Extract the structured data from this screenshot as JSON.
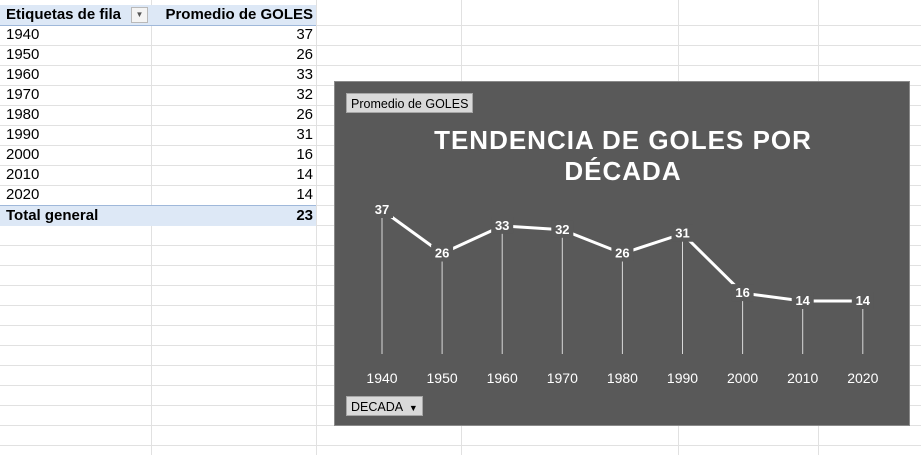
{
  "pivot": {
    "header_row_label": "Etiquetas de fila",
    "header_value": "Promedio de GOLES",
    "filter_icon": "dropdown-arrow-icon",
    "rows": [
      {
        "label": "1940",
        "value": "37"
      },
      {
        "label": "1950",
        "value": "26"
      },
      {
        "label": "1960",
        "value": "33"
      },
      {
        "label": "1970",
        "value": "32"
      },
      {
        "label": "1980",
        "value": "26"
      },
      {
        "label": "1990",
        "value": "31"
      },
      {
        "label": "2000",
        "value": "16"
      },
      {
        "label": "2010",
        "value": "14"
      },
      {
        "label": "2020",
        "value": "14"
      }
    ],
    "total_label": "Total general",
    "total_value": "23"
  },
  "chart": {
    "value_field_button": "Promedio de GOLES",
    "axis_field_button": "DECADA",
    "axis_field_icon": "dropdown-arrow-icon",
    "background": "#595959",
    "line_color": "#ffffff"
  },
  "chart_data": {
    "type": "line",
    "title": "TENDENCIA DE GOLES POR DÉCADA",
    "categories": [
      "1940",
      "1950",
      "1960",
      "1970",
      "1980",
      "1990",
      "2000",
      "2010",
      "2020"
    ],
    "series": [
      {
        "values": [
          37,
          26,
          33,
          32,
          26,
          31,
          16,
          14,
          14
        ]
      }
    ],
    "data_labels": true,
    "drop_lines": true,
    "xlabel": "",
    "ylabel": "",
    "ylim": [
      0,
      40
    ],
    "legend": "none",
    "grid": false
  }
}
